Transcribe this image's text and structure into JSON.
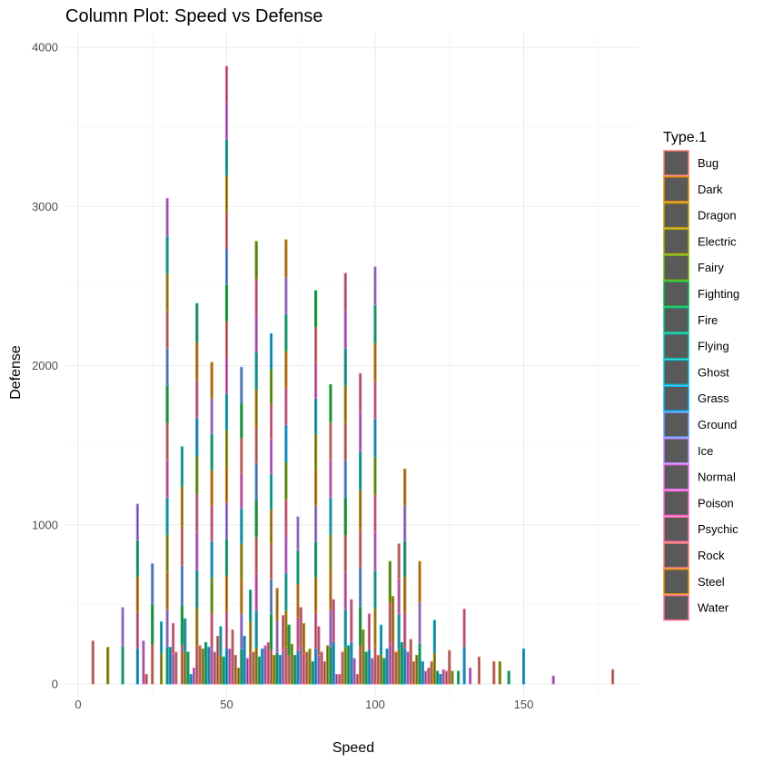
{
  "chart_data": {
    "type": "bar",
    "title": "Column Plot: Speed vs Defense",
    "xlabel": "Speed",
    "ylabel": "Defense",
    "xlim": [
      -2,
      188
    ],
    "ylim": [
      0,
      4000
    ],
    "x_ticks": [
      0,
      50,
      100,
      150
    ],
    "y_ticks": [
      0,
      1000,
      2000,
      3000,
      4000
    ],
    "grid": true,
    "legend": {
      "title": "Type.1",
      "position": "right",
      "entries": [
        {
          "name": "Bug",
          "color": "#F8766D"
        },
        {
          "name": "Dark",
          "color": "#E58700"
        },
        {
          "name": "Dragon",
          "color": "#C99800"
        },
        {
          "name": "Electric",
          "color": "#A3A500"
        },
        {
          "name": "Fairy",
          "color": "#6BB100"
        },
        {
          "name": "Fighting",
          "color": "#00BA38"
        },
        {
          "name": "Fire",
          "color": "#00BF7D"
        },
        {
          "name": "Flying",
          "color": "#00C0AF"
        },
        {
          "name": "Ghost",
          "color": "#00BCD8"
        },
        {
          "name": "Grass",
          "color": "#00B0F6"
        },
        {
          "name": "Ground",
          "color": "#619CFF"
        },
        {
          "name": "Ice",
          "color": "#B983FF"
        },
        {
          "name": "Normal",
          "color": "#E76BF3"
        },
        {
          "name": "Poison",
          "color": "#FD61D1"
        },
        {
          "name": "Psychic",
          "color": "#FF67A4"
        },
        {
          "name": "Rock",
          "color": "#F8766D"
        },
        {
          "name": "Steel",
          "color": "#E58700"
        },
        {
          "name": "Water",
          "color": "#FF6C91"
        }
      ]
    },
    "bars": [
      {
        "x": 5,
        "y": 270
      },
      {
        "x": 10,
        "y": 230
      },
      {
        "x": 15,
        "y": 480
      },
      {
        "x": 20,
        "y": 1130
      },
      {
        "x": 22,
        "y": 270
      },
      {
        "x": 23,
        "y": 60
      },
      {
        "x": 25,
        "y": 755
      },
      {
        "x": 28,
        "y": 390
      },
      {
        "x": 30,
        "y": 3050
      },
      {
        "x": 31,
        "y": 230
      },
      {
        "x": 32,
        "y": 380
      },
      {
        "x": 33,
        "y": 200
      },
      {
        "x": 35,
        "y": 1490
      },
      {
        "x": 36,
        "y": 410
      },
      {
        "x": 37,
        "y": 200
      },
      {
        "x": 38,
        "y": 60
      },
      {
        "x": 39,
        "y": 100
      },
      {
        "x": 40,
        "y": 2390
      },
      {
        "x": 41,
        "y": 240
      },
      {
        "x": 42,
        "y": 220
      },
      {
        "x": 43,
        "y": 260
      },
      {
        "x": 44,
        "y": 230
      },
      {
        "x": 45,
        "y": 2020
      },
      {
        "x": 46,
        "y": 200
      },
      {
        "x": 47,
        "y": 300
      },
      {
        "x": 48,
        "y": 360
      },
      {
        "x": 49,
        "y": 170
      },
      {
        "x": 50,
        "y": 3880
      },
      {
        "x": 51,
        "y": 220
      },
      {
        "x": 52,
        "y": 340
      },
      {
        "x": 53,
        "y": 180
      },
      {
        "x": 54,
        "y": 100
      },
      {
        "x": 55,
        "y": 1990
      },
      {
        "x": 56,
        "y": 300
      },
      {
        "x": 57,
        "y": 160
      },
      {
        "x": 58,
        "y": 590
      },
      {
        "x": 59,
        "y": 200
      },
      {
        "x": 60,
        "y": 2780
      },
      {
        "x": 61,
        "y": 170
      },
      {
        "x": 62,
        "y": 220
      },
      {
        "x": 63,
        "y": 240
      },
      {
        "x": 64,
        "y": 260
      },
      {
        "x": 65,
        "y": 2200
      },
      {
        "x": 66,
        "y": 180
      },
      {
        "x": 67,
        "y": 600
      },
      {
        "x": 68,
        "y": 180
      },
      {
        "x": 69,
        "y": 430
      },
      {
        "x": 70,
        "y": 2790
      },
      {
        "x": 71,
        "y": 370
      },
      {
        "x": 72,
        "y": 250
      },
      {
        "x": 73,
        "y": 180
      },
      {
        "x": 74,
        "y": 1050
      },
      {
        "x": 75,
        "y": 480
      },
      {
        "x": 76,
        "y": 380
      },
      {
        "x": 77,
        "y": 200
      },
      {
        "x": 78,
        "y": 220
      },
      {
        "x": 79,
        "y": 140
      },
      {
        "x": 80,
        "y": 2470
      },
      {
        "x": 81,
        "y": 360
      },
      {
        "x": 82,
        "y": 200
      },
      {
        "x": 83,
        "y": 140
      },
      {
        "x": 84,
        "y": 240
      },
      {
        "x": 85,
        "y": 1880
      },
      {
        "x": 86,
        "y": 530
      },
      {
        "x": 87,
        "y": 60
      },
      {
        "x": 88,
        "y": 60
      },
      {
        "x": 89,
        "y": 200
      },
      {
        "x": 90,
        "y": 2580
      },
      {
        "x": 91,
        "y": 240
      },
      {
        "x": 92,
        "y": 530
      },
      {
        "x": 93,
        "y": 160
      },
      {
        "x": 94,
        "y": 60
      },
      {
        "x": 95,
        "y": 1950
      },
      {
        "x": 96,
        "y": 340
      },
      {
        "x": 97,
        "y": 200
      },
      {
        "x": 98,
        "y": 440
      },
      {
        "x": 99,
        "y": 160
      },
      {
        "x": 100,
        "y": 2620
      },
      {
        "x": 101,
        "y": 180
      },
      {
        "x": 102,
        "y": 370
      },
      {
        "x": 103,
        "y": 160
      },
      {
        "x": 104,
        "y": 220
      },
      {
        "x": 105,
        "y": 770
      },
      {
        "x": 106,
        "y": 550
      },
      {
        "x": 107,
        "y": 200
      },
      {
        "x": 108,
        "y": 880
      },
      {
        "x": 109,
        "y": 260
      },
      {
        "x": 110,
        "y": 1350
      },
      {
        "x": 111,
        "y": 200
      },
      {
        "x": 112,
        "y": 280
      },
      {
        "x": 113,
        "y": 140
      },
      {
        "x": 114,
        "y": 180
      },
      {
        "x": 115,
        "y": 770
      },
      {
        "x": 116,
        "y": 140
      },
      {
        "x": 117,
        "y": 80
      },
      {
        "x": 118,
        "y": 100
      },
      {
        "x": 119,
        "y": 140
      },
      {
        "x": 120,
        "y": 400
      },
      {
        "x": 121,
        "y": 80
      },
      {
        "x": 122,
        "y": 60
      },
      {
        "x": 123,
        "y": 90
      },
      {
        "x": 124,
        "y": 80
      },
      {
        "x": 125,
        "y": 210
      },
      {
        "x": 126,
        "y": 80
      },
      {
        "x": 128,
        "y": 80
      },
      {
        "x": 130,
        "y": 470
      },
      {
        "x": 132,
        "y": 100
      },
      {
        "x": 135,
        "y": 170
      },
      {
        "x": 140,
        "y": 140
      },
      {
        "x": 142,
        "y": 140
      },
      {
        "x": 145,
        "y": 80
      },
      {
        "x": 150,
        "y": 220
      },
      {
        "x": 160,
        "y": 50
      },
      {
        "x": 180,
        "y": 90
      }
    ]
  }
}
